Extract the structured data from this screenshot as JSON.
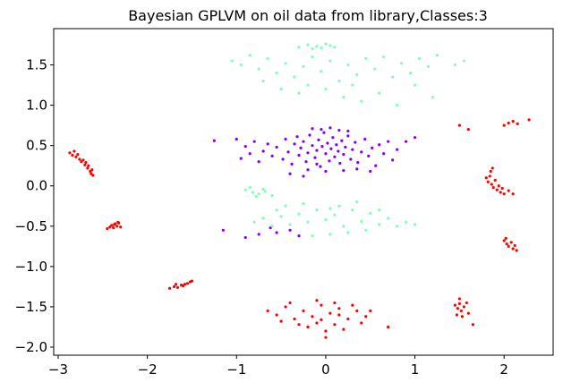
{
  "chart_data": {
    "type": "scatter",
    "title": "Bayesian GPLVM on oil data from library,Classes:3",
    "xlabel": "",
    "ylabel": "",
    "xlim": [
      -3.05,
      2.55
    ],
    "ylim": [
      -2.1,
      1.95
    ],
    "x_ticks": [
      -3,
      -2,
      -1,
      0,
      1,
      2
    ],
    "x_tick_labels": [
      "−3",
      "−2",
      "−1",
      "0",
      "1",
      "2"
    ],
    "y_ticks": [
      -2.0,
      -1.5,
      -1.0,
      -0.5,
      0.0,
      0.5,
      1.0,
      1.5
    ],
    "y_tick_labels": [
      "−2.0",
      "−1.5",
      "−1.0",
      "−0.5",
      "0.0",
      "0.5",
      "1.0",
      "1.5"
    ],
    "grid": false,
    "legend": "none",
    "series": [
      {
        "color": "#8000ff",
        "points": [
          [
            -0.55,
            0.48
          ],
          [
            -0.48,
            0.33
          ],
          [
            -0.45,
            0.58
          ],
          [
            -0.42,
            0.42
          ],
          [
            -0.38,
            0.27
          ],
          [
            -0.35,
            0.52
          ],
          [
            -0.32,
            0.61
          ],
          [
            -0.3,
            0.38
          ],
          [
            -0.28,
            0.47
          ],
          [
            -0.25,
            0.55
          ],
          [
            -0.22,
            0.3
          ],
          [
            -0.2,
            0.41
          ],
          [
            -0.18,
            0.63
          ],
          [
            -0.15,
            0.5
          ],
          [
            -0.12,
            0.35
          ],
          [
            -0.1,
            0.44
          ],
          [
            -0.08,
            0.57
          ],
          [
            -0.06,
            0.24
          ],
          [
            -0.04,
            0.49
          ],
          [
            -0.02,
            0.66
          ],
          [
            0.0,
            0.4
          ],
          [
            0.02,
            0.53
          ],
          [
            0.04,
            0.31
          ],
          [
            0.06,
            0.46
          ],
          [
            0.08,
            0.6
          ],
          [
            0.1,
            0.36
          ],
          [
            0.12,
            0.51
          ],
          [
            0.14,
            0.43
          ],
          [
            0.16,
            0.28
          ],
          [
            0.18,
            0.56
          ],
          [
            0.2,
            0.39
          ],
          [
            0.22,
            0.48
          ],
          [
            0.25,
            0.62
          ],
          [
            0.28,
            0.33
          ],
          [
            0.3,
            0.45
          ],
          [
            0.33,
            0.54
          ],
          [
            0.36,
            0.29
          ],
          [
            0.4,
            0.42
          ],
          [
            0.44,
            0.58
          ],
          [
            0.48,
            0.37
          ],
          [
            0.52,
            0.47
          ],
          [
            0.56,
            0.25
          ],
          [
            0.6,
            0.51
          ],
          [
            0.65,
            0.4
          ],
          [
            0.7,
            0.55
          ],
          [
            0.75,
            0.32
          ],
          [
            0.8,
            0.45
          ],
          [
            -0.6,
            0.37
          ],
          [
            -0.65,
            0.52
          ],
          [
            -0.7,
            0.43
          ],
          [
            -0.75,
            0.3
          ],
          [
            -0.8,
            0.55
          ],
          [
            -0.85,
            0.4
          ],
          [
            -0.9,
            0.49
          ],
          [
            -0.95,
            0.34
          ],
          [
            -1.0,
            0.58
          ],
          [
            -0.05,
            0.7
          ],
          [
            0.05,
            0.72
          ],
          [
            0.15,
            0.69
          ],
          [
            -0.15,
            0.71
          ],
          [
            0.25,
            0.68
          ],
          [
            -0.2,
            0.2
          ],
          [
            0.0,
            0.18
          ],
          [
            0.2,
            0.19
          ],
          [
            0.9,
            0.55
          ],
          [
            1.0,
            0.6
          ],
          [
            -1.25,
            0.56
          ],
          [
            -0.1,
            0.27
          ],
          [
            0.35,
            0.21
          ],
          [
            -0.4,
            0.15
          ],
          [
            0.5,
            0.18
          ],
          [
            -0.25,
            0.12
          ],
          [
            -0.75,
            -0.6
          ],
          [
            -0.55,
            -0.58
          ],
          [
            -0.4,
            -0.55
          ],
          [
            -0.3,
            -0.62
          ],
          [
            -0.62,
            -0.52
          ],
          [
            -0.9,
            -0.64
          ],
          [
            -1.15,
            -0.55
          ]
        ]
      },
      {
        "color": "#80ffb4",
        "points": [
          [
            -1.05,
            1.55
          ],
          [
            -0.95,
            1.5
          ],
          [
            -0.85,
            1.62
          ],
          [
            -0.75,
            1.45
          ],
          [
            -0.65,
            1.58
          ],
          [
            -0.55,
            1.4
          ],
          [
            -0.45,
            1.52
          ],
          [
            -0.35,
            1.35
          ],
          [
            -0.25,
            1.48
          ],
          [
            -0.15,
            1.6
          ],
          [
            -0.05,
            1.42
          ],
          [
            0.05,
            1.55
          ],
          [
            0.15,
            1.3
          ],
          [
            0.25,
            1.5
          ],
          [
            0.35,
            1.38
          ],
          [
            0.45,
            1.58
          ],
          [
            0.55,
            1.45
          ],
          [
            0.65,
            1.6
          ],
          [
            0.75,
            1.35
          ],
          [
            0.85,
            1.52
          ],
          [
            0.95,
            1.4
          ],
          [
            1.05,
            1.58
          ],
          [
            1.15,
            1.48
          ],
          [
            1.25,
            1.62
          ],
          [
            -0.3,
            1.72
          ],
          [
            -0.2,
            1.75
          ],
          [
            -0.1,
            1.73
          ],
          [
            0.0,
            1.76
          ],
          [
            0.1,
            1.72
          ],
          [
            -0.15,
            1.7
          ],
          [
            0.05,
            1.74
          ],
          [
            -0.05,
            1.71
          ],
          [
            -0.2,
            1.25
          ],
          [
            -0.3,
            1.15
          ],
          [
            0.0,
            1.2
          ],
          [
            0.2,
            1.1
          ],
          [
            0.4,
            1.05
          ],
          [
            0.6,
            1.15
          ],
          [
            0.8,
            1.0
          ],
          [
            -0.5,
            1.2
          ],
          [
            1.2,
            1.1
          ],
          [
            1.0,
            1.25
          ],
          [
            0.3,
            1.25
          ],
          [
            -0.7,
            1.3
          ],
          [
            1.45,
            1.5
          ],
          [
            1.55,
            1.55
          ],
          [
            -0.9,
            -0.05
          ],
          [
            -0.82,
            -0.08
          ],
          [
            -0.75,
            -0.1
          ],
          [
            -0.68,
            -0.07
          ],
          [
            -0.6,
            -0.12
          ],
          [
            -0.85,
            -0.02
          ],
          [
            -0.7,
            -0.04
          ],
          [
            -0.78,
            -0.13
          ],
          [
            -0.8,
            -0.45
          ],
          [
            -0.7,
            -0.4
          ],
          [
            -0.6,
            -0.5
          ],
          [
            -0.5,
            -0.38
          ],
          [
            -0.4,
            -0.48
          ],
          [
            -0.3,
            -0.35
          ],
          [
            -0.2,
            -0.45
          ],
          [
            -0.1,
            -0.3
          ],
          [
            0.0,
            -0.42
          ],
          [
            0.1,
            -0.36
          ],
          [
            0.2,
            -0.5
          ],
          [
            0.3,
            -0.3
          ],
          [
            0.4,
            -0.44
          ],
          [
            0.5,
            -0.34
          ],
          [
            0.6,
            -0.48
          ],
          [
            0.7,
            -0.4
          ],
          [
            0.8,
            -0.5
          ],
          [
            0.9,
            -0.45
          ],
          [
            1.0,
            -0.48
          ],
          [
            -0.45,
            -0.25
          ],
          [
            -0.25,
            -0.22
          ],
          [
            0.05,
            -0.28
          ],
          [
            0.35,
            -0.2
          ],
          [
            0.25,
            -0.58
          ],
          [
            0.05,
            -0.6
          ],
          [
            -0.15,
            -0.62
          ],
          [
            0.45,
            -0.55
          ],
          [
            -0.55,
            -0.3
          ],
          [
            0.15,
            -0.25
          ],
          [
            0.6,
            -0.3
          ]
        ]
      },
      {
        "color": "#ff0000",
        "points": [
          [
            -2.87,
            0.41
          ],
          [
            -2.84,
            0.38
          ],
          [
            -2.82,
            0.43
          ],
          [
            -2.8,
            0.36
          ],
          [
            -2.78,
            0.39
          ],
          [
            -2.76,
            0.33
          ],
          [
            -2.74,
            0.3
          ],
          [
            -2.72,
            0.32
          ],
          [
            -2.7,
            0.26
          ],
          [
            -2.69,
            0.29
          ],
          [
            -2.67,
            0.22
          ],
          [
            -2.66,
            0.25
          ],
          [
            -2.64,
            0.18
          ],
          [
            -2.63,
            0.15
          ],
          [
            -2.62,
            0.2
          ],
          [
            -2.61,
            0.13
          ],
          [
            -2.45,
            -0.53
          ],
          [
            -2.42,
            -0.51
          ],
          [
            -2.4,
            -0.49
          ],
          [
            -2.38,
            -0.52
          ],
          [
            -2.36,
            -0.47
          ],
          [
            -2.34,
            -0.5
          ],
          [
            -2.32,
            -0.46
          ],
          [
            -2.3,
            -0.51
          ],
          [
            -2.37,
            -0.48
          ],
          [
            -2.33,
            -0.45
          ],
          [
            -1.75,
            -1.27
          ],
          [
            -1.7,
            -1.25
          ],
          [
            -1.66,
            -1.26
          ],
          [
            -1.62,
            -1.23
          ],
          [
            -1.58,
            -1.22
          ],
          [
            -1.55,
            -1.21
          ],
          [
            -1.52,
            -1.19
          ],
          [
            -1.5,
            -1.18
          ],
          [
            -1.6,
            -1.24
          ],
          [
            -1.68,
            -1.22
          ],
          [
            -0.65,
            -1.55
          ],
          [
            -0.55,
            -1.6
          ],
          [
            -0.45,
            -1.5
          ],
          [
            -0.35,
            -1.65
          ],
          [
            -0.25,
            -1.55
          ],
          [
            -0.15,
            -1.62
          ],
          [
            -0.05,
            -1.48
          ],
          [
            0.05,
            -1.58
          ],
          [
            0.15,
            -1.52
          ],
          [
            0.25,
            -1.65
          ],
          [
            0.35,
            -1.55
          ],
          [
            0.45,
            -1.62
          ],
          [
            -0.2,
            -1.75
          ],
          [
            -0.1,
            -1.7
          ],
          [
            0.0,
            -1.8
          ],
          [
            0.1,
            -1.72
          ],
          [
            0.2,
            -1.78
          ],
          [
            -0.3,
            -1.72
          ],
          [
            -0.4,
            -1.45
          ],
          [
            -0.1,
            -1.42
          ],
          [
            0.1,
            -1.45
          ],
          [
            0.3,
            -1.48
          ],
          [
            0.0,
            -1.88
          ],
          [
            0.4,
            -1.7
          ],
          [
            -0.5,
            -1.68
          ],
          [
            0.5,
            -1.55
          ],
          [
            0.15,
            -1.6
          ],
          [
            -0.05,
            -1.66
          ],
          [
            0.7,
            -1.75
          ],
          [
            1.45,
            -1.48
          ],
          [
            1.48,
            -1.52
          ],
          [
            1.5,
            -1.46
          ],
          [
            1.52,
            -1.55
          ],
          [
            1.55,
            -1.5
          ],
          [
            1.58,
            -1.45
          ],
          [
            1.47,
            -1.6
          ],
          [
            1.53,
            -1.62
          ],
          [
            1.6,
            -1.58
          ],
          [
            1.5,
            -1.4
          ],
          [
            1.65,
            -1.72
          ],
          [
            1.8,
            0.1
          ],
          [
            1.82,
            0.05
          ],
          [
            1.84,
            0.12
          ],
          [
            1.86,
            0.02
          ],
          [
            1.88,
            -0.02
          ],
          [
            1.9,
            0.07
          ],
          [
            1.92,
            -0.05
          ],
          [
            1.94,
            0.0
          ],
          [
            1.96,
            -0.08
          ],
          [
            1.98,
            -0.03
          ],
          [
            2.0,
            -0.1
          ],
          [
            1.85,
            0.18
          ],
          [
            1.87,
            0.22
          ],
          [
            2.05,
            -0.06
          ],
          [
            2.1,
            -0.1
          ],
          [
            2.0,
            -0.68
          ],
          [
            2.03,
            -0.72
          ],
          [
            2.05,
            -0.75
          ],
          [
            2.08,
            -0.7
          ],
          [
            2.1,
            -0.78
          ],
          [
            2.12,
            -0.74
          ],
          [
            2.14,
            -0.8
          ],
          [
            2.02,
            -0.65
          ],
          [
            1.5,
            0.75
          ],
          [
            1.6,
            0.7
          ],
          [
            2.0,
            0.75
          ],
          [
            2.05,
            0.78
          ],
          [
            2.1,
            0.8
          ],
          [
            2.15,
            0.77
          ],
          [
            2.28,
            0.82
          ]
        ]
      }
    ]
  }
}
